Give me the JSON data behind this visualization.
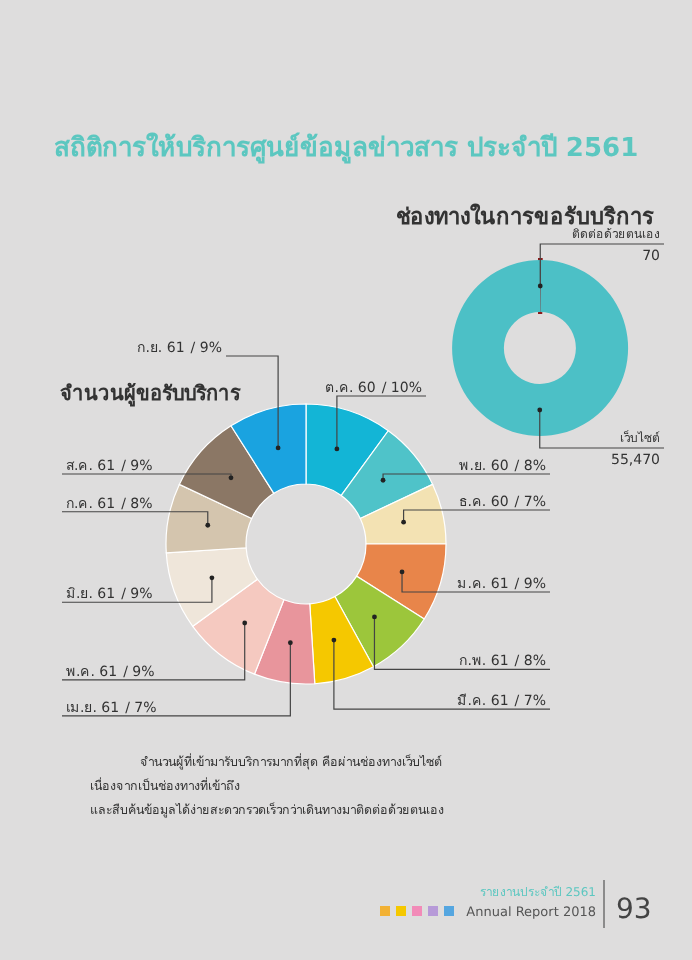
{
  "chart_data": [
    {
      "type": "donut",
      "title": "สถิติการให้บริการศูนย์ข้อมูลข่าวสาร ประจำปี 2561",
      "subtitle": "จำนวนผู้ขอรับบริการ",
      "categories": [
        "ต.ค. 60",
        "พ.ย. 60",
        "ธ.ค. 60",
        "ม.ค. 61",
        "ก.พ. 61",
        "มี.ค. 61",
        "เม.ย. 61",
        "พ.ค. 61",
        "มิ.ย. 61",
        "ก.ค. 61",
        "ส.ค. 61",
        "ก.ย. 61"
      ],
      "values": [
        10,
        8,
        7,
        9,
        8,
        7,
        7,
        9,
        9,
        8,
        9,
        9
      ],
      "value_labels": [
        "/ 10%",
        "/ 8%",
        "/ 7%",
        "/ 9%",
        "/ 8%",
        "/ 7%",
        "/ 7%",
        "/ 9%",
        "/ 9%",
        "/ 8%",
        "/ 9%",
        "/ 9%"
      ],
      "colors": [
        "#13b5d6",
        "#4fc3c9",
        "#f3e2b3",
        "#e8854a",
        "#9cc63b",
        "#f5c800",
        "#e8959c",
        "#f5c9c0",
        "#efe6da",
        "#d4c5ae",
        "#8b7765",
        "#1aa3e0"
      ],
      "annotations": [
        "จำนวนผู้ที่เข้ามารับบริการมากที่สุด คือผ่านช่องทางเว็บไซต์ เนื่องจากเป็นช่องทางที่เข้าถึง และสืบค้นข้อมูลได้ง่ายสะดวกรวดเร็วกว่าเดินทางมาติดต่อด้วยตนเอง",
        "รายงานประจำปี 2561",
        "Annual Report 2018",
        "93"
      ]
    },
    {
      "type": "donut",
      "title": "ช่องทางในการขอรับบริการ",
      "categories": [
        "ติดต่อด้วยตนเอง",
        "เว็บไซต์"
      ],
      "values": [
        70,
        55470
      ],
      "value_labels": [
        "70",
        "55,470"
      ],
      "colors": [
        "#8b1a1a",
        "#4cc0c6"
      ]
    }
  ]
}
